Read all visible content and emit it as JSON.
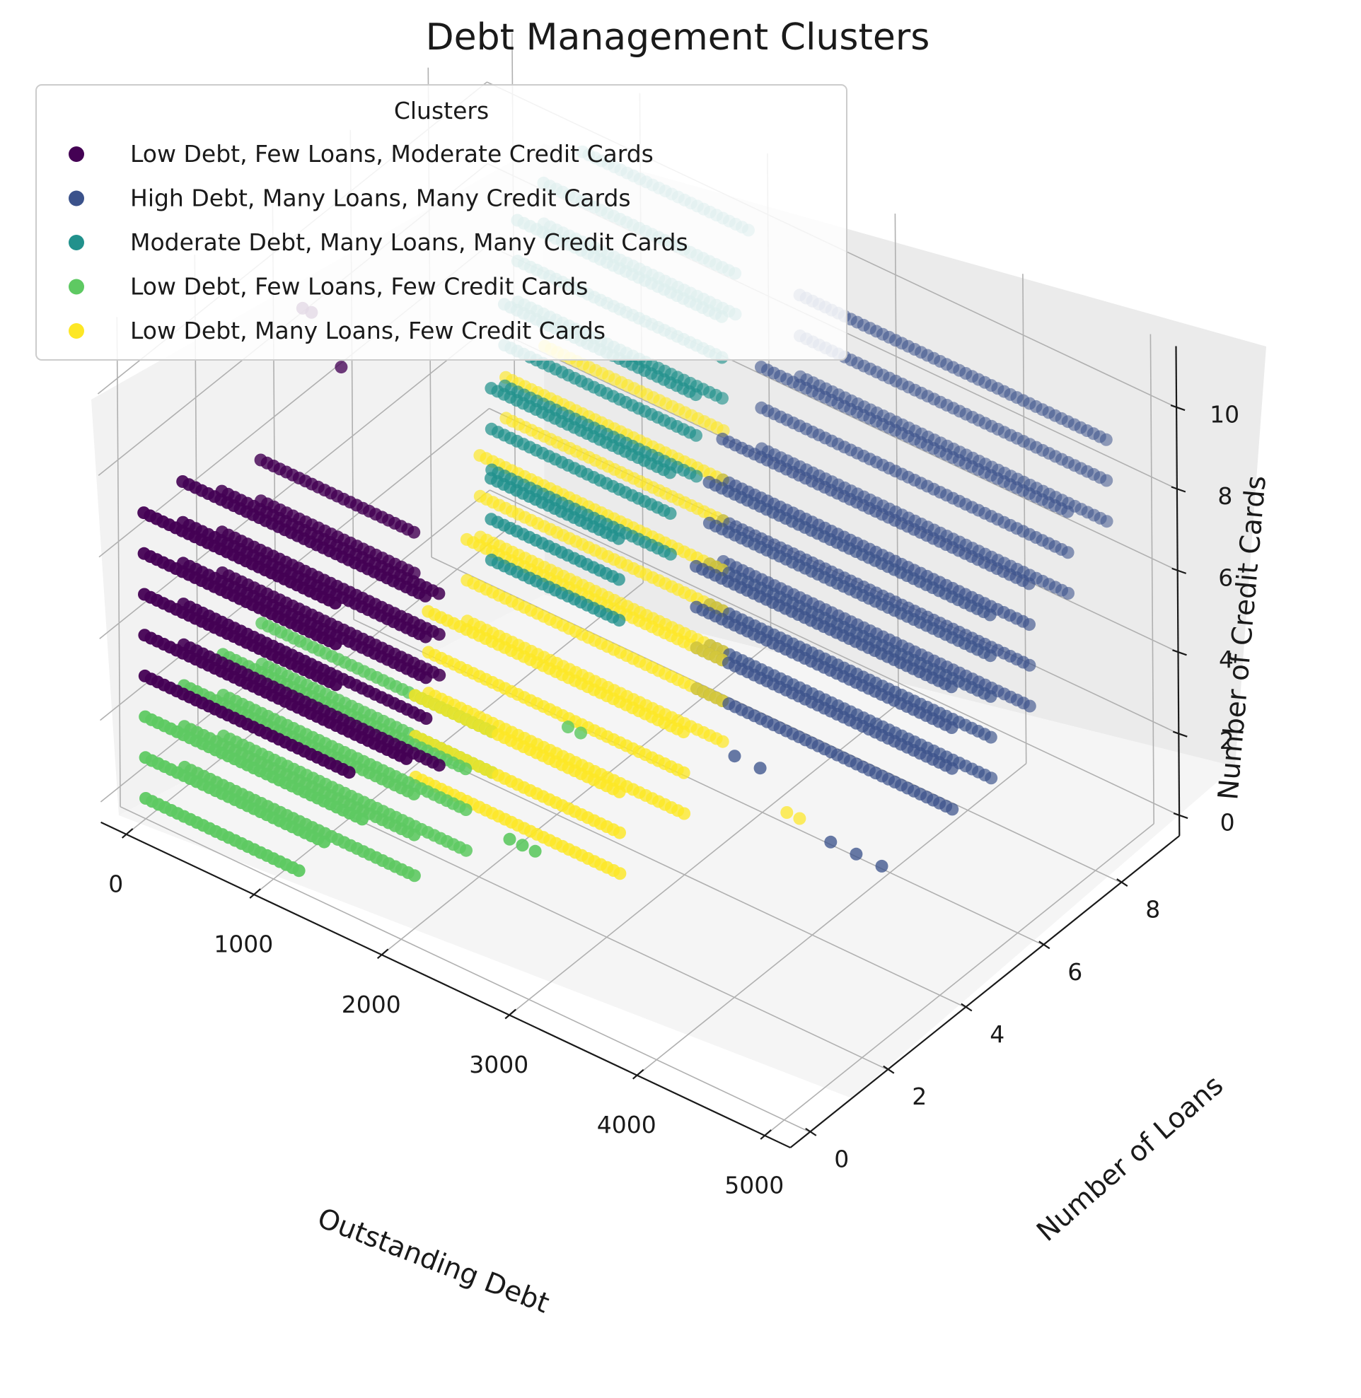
{
  "chart_data": {
    "type": "scatter",
    "projection": "3d",
    "title": "Debt Management Clusters",
    "xlabel": "Outstanding Debt",
    "ylabel": "Number of Loans",
    "zlabel": "Number of Credit Cards",
    "xlim": [
      -200,
      5200
    ],
    "ylim": [
      -0.5,
      9.5
    ],
    "zlim": [
      -0.5,
      11.5
    ],
    "xticks": [
      0,
      1000,
      2000,
      3000,
      4000,
      5000
    ],
    "yticks": [
      0,
      2,
      4,
      6,
      8
    ],
    "zticks": [
      0,
      2,
      4,
      6,
      8,
      10
    ],
    "grid": true,
    "legend": {
      "title": "Clusters",
      "position": "top-left"
    },
    "series": [
      {
        "name": "Low Debt, Few Loans, Moderate Credit Cards",
        "color": "#440154",
        "segments": [
          {
            "y": 0,
            "z": 3,
            "x": [
              0,
              1600
            ]
          },
          {
            "y": 0,
            "z": 4,
            "x": [
              0,
              2050
            ]
          },
          {
            "y": 0,
            "z": 5,
            "x": [
              0,
              1500
            ]
          },
          {
            "y": 0,
            "z": 6,
            "x": [
              0,
              1500
            ]
          },
          {
            "y": 0,
            "z": 7,
            "x": [
              0,
              1500
            ]
          },
          {
            "y": 1,
            "z": 3,
            "x": [
              0,
              2000
            ]
          },
          {
            "y": 1,
            "z": 4,
            "x": [
              0,
              1900
            ]
          },
          {
            "y": 1,
            "z": 5,
            "x": [
              0,
              1900
            ]
          },
          {
            "y": 1,
            "z": 6,
            "x": [
              0,
              1900
            ]
          },
          {
            "y": 1,
            "z": 7,
            "x": [
              0,
              1900
            ]
          },
          {
            "y": 2,
            "z": 4,
            "x": [
              0,
              1700
            ]
          },
          {
            "y": 2,
            "z": 5,
            "x": [
              0,
              1700
            ]
          },
          {
            "y": 2,
            "z": 6,
            "x": [
              0,
              1700
            ]
          },
          {
            "y": 3,
            "z": 5,
            "x": [
              0,
              1200
            ]
          },
          {
            "y": 3,
            "z": 6,
            "x": [
              0,
              1200
            ]
          }
        ],
        "points": [
          {
            "x": 30,
            "y": 4,
            "z": 9
          },
          {
            "x": 100,
            "y": 4,
            "z": 9
          },
          {
            "x": 330,
            "y": 4,
            "z": 8
          }
        ]
      },
      {
        "name": "High Debt, Many Loans, Many Credit Cards",
        "color": "#3b528b",
        "segments": [
          {
            "y": 5,
            "z": 3,
            "x": [
              2800,
              4800
            ]
          },
          {
            "y": 5,
            "z": 4,
            "x": [
              2800,
              4800
            ]
          },
          {
            "y": 5,
            "z": 5,
            "x": [
              2800,
              4800
            ]
          },
          {
            "y": 5,
            "z": 6,
            "x": [
              2800,
              4800
            ]
          },
          {
            "y": 6,
            "z": 3,
            "x": [
              2600,
              4800
            ]
          },
          {
            "y": 6,
            "z": 4,
            "x": [
              2600,
              4800
            ]
          },
          {
            "y": 6,
            "z": 5,
            "x": [
              2600,
              4800
            ]
          },
          {
            "y": 6,
            "z": 6,
            "x": [
              2600,
              4800
            ]
          },
          {
            "y": 6,
            "z": 7,
            "x": [
              2600,
              4800
            ]
          },
          {
            "y": 7,
            "z": 4,
            "x": [
              2400,
              4800
            ]
          },
          {
            "y": 7,
            "z": 5,
            "x": [
              2400,
              4800
            ]
          },
          {
            "y": 7,
            "z": 6,
            "x": [
              2400,
              4800
            ]
          },
          {
            "y": 7,
            "z": 7,
            "x": [
              2400,
              4800
            ]
          },
          {
            "y": 8,
            "z": 6,
            "x": [
              2400,
              4800
            ]
          },
          {
            "y": 8,
            "z": 7,
            "x": [
              2400,
              4800
            ]
          },
          {
            "y": 8,
            "z": 8,
            "x": [
              2400,
              4800
            ]
          },
          {
            "y": 9,
            "z": 7,
            "x": [
              2400,
              4800
            ]
          },
          {
            "y": 9,
            "z": 8,
            "x": [
              2400,
              4800
            ]
          },
          {
            "y": 9,
            "z": 9,
            "x": [
              2400,
              4800
            ]
          }
        ],
        "points": [
          {
            "x": 4150,
            "y": 4,
            "z": 2
          },
          {
            "x": 4350,
            "y": 4,
            "z": 2
          },
          {
            "x": 4550,
            "y": 4,
            "z": 2
          },
          {
            "x": 3400,
            "y": 4,
            "z": 3
          },
          {
            "x": 3600,
            "y": 4,
            "z": 3
          }
        ]
      },
      {
        "name": "Moderate Debt, Many Loans, Many Credit Cards",
        "color": "#21918c",
        "segments": [
          {
            "y": 4,
            "z": 5,
            "x": [
              1500,
              2500
            ]
          },
          {
            "y": 4,
            "z": 6,
            "x": [
              1500,
              2500
            ]
          },
          {
            "y": 4,
            "z": 7,
            "x": [
              1500,
              2500
            ]
          },
          {
            "y": 5,
            "z": 6,
            "x": [
              1200,
              2600
            ]
          },
          {
            "y": 5,
            "z": 7,
            "x": [
              1200,
              2600
            ]
          },
          {
            "y": 5,
            "z": 8,
            "x": [
              1200,
              2600
            ]
          },
          {
            "y": 6,
            "z": 7,
            "x": [
              1000,
              2500
            ]
          },
          {
            "y": 6,
            "z": 8,
            "x": [
              1000,
              2500
            ]
          },
          {
            "y": 6,
            "z": 9,
            "x": [
              1000,
              2500
            ]
          },
          {
            "y": 7,
            "z": 8,
            "x": [
              800,
              2400
            ]
          },
          {
            "y": 7,
            "z": 9,
            "x": [
              800,
              2400
            ]
          },
          {
            "y": 7,
            "z": 10,
            "x": [
              800,
              2400
            ]
          },
          {
            "y": 8,
            "z": 9,
            "x": [
              700,
              2200
            ]
          },
          {
            "y": 8,
            "z": 10,
            "x": [
              700,
              2200
            ]
          },
          {
            "y": 9,
            "z": 10,
            "x": [
              700,
              2000
            ]
          }
        ],
        "points": []
      },
      {
        "name": "Low Debt, Few Loans, Few Credit Cards",
        "color": "#5ec962",
        "segments": [
          {
            "y": 0,
            "z": 0,
            "x": [
              0,
              1200
            ]
          },
          {
            "y": 0,
            "z": 1,
            "x": [
              0,
              1400
            ]
          },
          {
            "y": 0,
            "z": 2,
            "x": [
              0,
              1700
            ]
          },
          {
            "y": 1,
            "z": 0,
            "x": [
              0,
              1800
            ]
          },
          {
            "y": 1,
            "z": 1,
            "x": [
              0,
              1800
            ]
          },
          {
            "y": 1,
            "z": 2,
            "x": [
              0,
              1800
            ]
          },
          {
            "y": 2,
            "z": 0,
            "x": [
              0,
              1900
            ]
          },
          {
            "y": 2,
            "z": 1,
            "x": [
              0,
              1900
            ]
          },
          {
            "y": 2,
            "z": 2,
            "x": [
              0,
              1900
            ]
          },
          {
            "y": 3,
            "z": 1,
            "x": [
              0,
              1800
            ]
          },
          {
            "y": 3,
            "z": 2,
            "x": [
              0,
              1800
            ]
          }
        ],
        "points": [
          {
            "x": 2550,
            "y": 1,
            "z": 2
          },
          {
            "x": 2650,
            "y": 1,
            "z": 2
          },
          {
            "x": 2750,
            "y": 1,
            "z": 2
          },
          {
            "x": 2400,
            "y": 3,
            "z": 3
          },
          {
            "x": 2500,
            "y": 3,
            "z": 3
          }
        ]
      },
      {
        "name": "Low Debt, Many Loans, Few Credit Cards",
        "color": "#fde725",
        "segments": [
          {
            "y": 3,
            "z": 0,
            "x": [
              1200,
              2800
            ]
          },
          {
            "y": 3,
            "z": 1,
            "x": [
              1200,
              2800
            ]
          },
          {
            "y": 3,
            "z": 2,
            "x": [
              1200,
              2800
            ]
          },
          {
            "y": 4,
            "z": 1,
            "x": [
              1000,
              3000
            ]
          },
          {
            "y": 4,
            "z": 2,
            "x": [
              1000,
              3000
            ]
          },
          {
            "y": 4,
            "z": 3,
            "x": [
              1000,
              3000
            ]
          },
          {
            "y": 5,
            "z": 2,
            "x": [
              1000,
              3000
            ]
          },
          {
            "y": 5,
            "z": 3,
            "x": [
              1000,
              3000
            ]
          },
          {
            "y": 5,
            "z": 4,
            "x": [
              1000,
              3000
            ]
          },
          {
            "y": 6,
            "z": 3,
            "x": [
              800,
              2700
            ]
          },
          {
            "y": 6,
            "z": 4,
            "x": [
              800,
              2700
            ]
          },
          {
            "y": 6,
            "z": 5,
            "x": [
              800,
              2700
            ]
          },
          {
            "y": 7,
            "z": 5,
            "x": [
              700,
              2400
            ]
          },
          {
            "y": 7,
            "z": 6,
            "x": [
              700,
              2400
            ]
          },
          {
            "y": 8,
            "z": 6,
            "x": [
              700,
              2100
            ]
          }
        ],
        "points": [
          {
            "x": 3500,
            "y": 5,
            "z": 1
          },
          {
            "x": 3600,
            "y": 5,
            "z": 1
          }
        ]
      }
    ]
  }
}
